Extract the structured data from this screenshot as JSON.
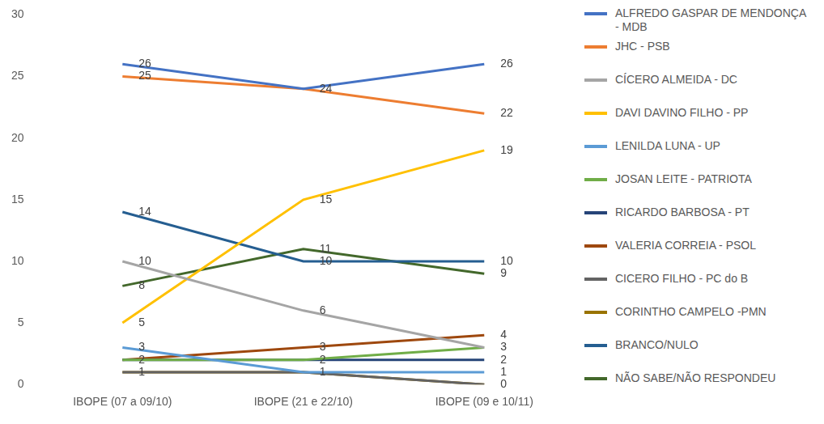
{
  "chart_data": {
    "type": "line",
    "categories": [
      "IBOPE (07 a 09/10)",
      "IBOPE (21 e 22/10)",
      "IBOPE (09 e 10/11)"
    ],
    "series": [
      {
        "name": "ALFREDO GASPAR DE MENDONÇA - MDB",
        "color": "#4472c4",
        "values": [
          26,
          24,
          26
        ]
      },
      {
        "name": "JHC - PSB",
        "color": "#ed7d31",
        "values": [
          25,
          24,
          22
        ]
      },
      {
        "name": "CÍCERO ALMEIDA - DC",
        "color": "#a5a5a5",
        "values": [
          10,
          6,
          3
        ]
      },
      {
        "name": "DAVI DAVINO FILHO - PP",
        "color": "#ffc000",
        "values": [
          5,
          15,
          19
        ]
      },
      {
        "name": "LENILDA LUNA - UP",
        "color": "#5b9bd5",
        "values": [
          3,
          1,
          1
        ]
      },
      {
        "name": "JOSAN LEITE - PATRIOTA",
        "color": "#70ad47",
        "values": [
          2,
          2,
          3
        ]
      },
      {
        "name": "RICARDO BARBOSA - PT",
        "color": "#264478",
        "values": [
          2,
          2,
          2
        ]
      },
      {
        "name": "VALERIA CORREIA - PSOL",
        "color": "#9e480e",
        "values": [
          2,
          3,
          4
        ]
      },
      {
        "name": "CICERO FILHO - PC do B",
        "color": "#636363",
        "values": [
          1,
          1,
          0
        ]
      },
      {
        "name": "CORINTHO CAMPELO -PMN",
        "color": "#997300",
        "values": [
          1,
          1,
          0
        ]
      },
      {
        "name": "BRANCO/NULO",
        "color": "#255e91",
        "values": [
          14,
          10,
          10
        ]
      },
      {
        "name": "NÃO SABE/NÃO RESPONDEU",
        "color": "#43682b",
        "values": [
          8,
          11,
          9
        ]
      }
    ],
    "ylim": [
      0,
      30
    ],
    "yticks": [
      0,
      5,
      10,
      15,
      20,
      25,
      30
    ],
    "grid": false,
    "legend": "right",
    "data_labels": true
  }
}
